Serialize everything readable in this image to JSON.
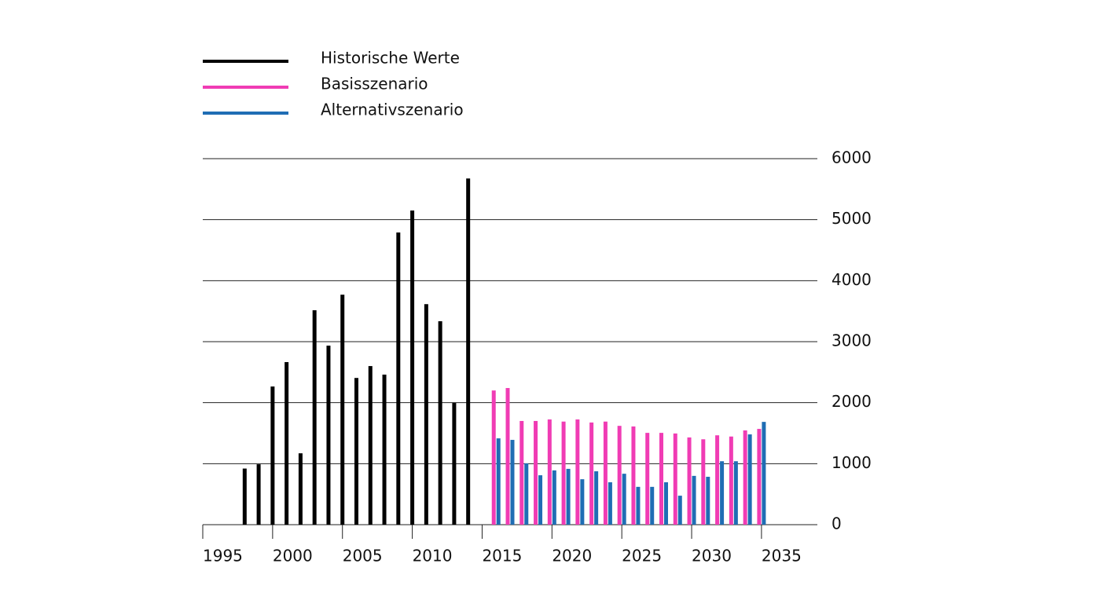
{
  "chart_data": {
    "type": "bar",
    "series": [
      {
        "name": "Historische Werte",
        "color": "#000000",
        "x": [
          1998,
          1999,
          2000,
          2001,
          2002,
          2003,
          2004,
          2005,
          2006,
          2007,
          2008,
          2009,
          2010,
          2011,
          2012,
          2013,
          2014
        ],
        "values": [
          920,
          990,
          2265,
          2665,
          1170,
          3515,
          2935,
          3770,
          2405,
          2600,
          2460,
          4790,
          5150,
          3615,
          3335,
          1995,
          5675
        ]
      },
      {
        "name": "Basisszenario",
        "color": "#f03cb4",
        "x": [
          2016,
          2017,
          2018,
          2019,
          2020,
          2021,
          2022,
          2023,
          2024,
          2025,
          2026,
          2027,
          2028,
          2029,
          2030,
          2031,
          2032,
          2033,
          2034,
          2035
        ],
        "values": [
          2200,
          2240,
          1700,
          1700,
          1725,
          1690,
          1725,
          1675,
          1690,
          1620,
          1610,
          1505,
          1505,
          1495,
          1430,
          1400,
          1465,
          1445,
          1545,
          1570
        ]
      },
      {
        "name": "Alternativszenario",
        "color": "#1f6db4",
        "x": [
          2016,
          2017,
          2018,
          2019,
          2020,
          2021,
          2022,
          2023,
          2024,
          2025,
          2026,
          2027,
          2028,
          2029,
          2030,
          2031,
          2032,
          2033,
          2034,
          2035
        ],
        "values": [
          1415,
          1390,
          1005,
          810,
          890,
          915,
          745,
          875,
          695,
          835,
          620,
          620,
          695,
          475,
          800,
          785,
          1040,
          1040,
          1480,
          1685
        ]
      }
    ],
    "xlim": [
      1995,
      2039
    ],
    "xticks": [
      1995,
      2000,
      2005,
      2010,
      2015,
      2020,
      2025,
      2030,
      2035
    ],
    "ylim": [
      0,
      6000
    ],
    "yticks": [
      0,
      1000,
      2000,
      3000,
      4000,
      5000,
      6000
    ],
    "grid": true
  }
}
